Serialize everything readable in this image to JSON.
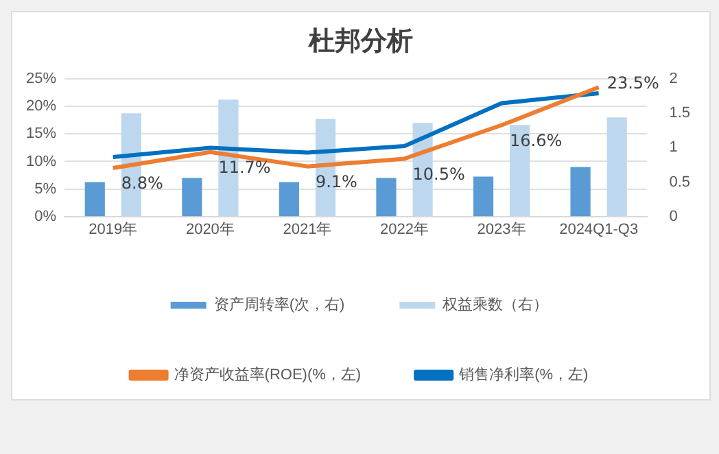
{
  "chart_data": {
    "type": "bar",
    "title": "杜邦分析",
    "categories": [
      "2019年",
      "2020年",
      "2021年",
      "2022年",
      "2023年",
      "2024Q1-Q3"
    ],
    "series": [
      {
        "name": "资产周转率(次，右)",
        "axis": "y2",
        "color": "#5b9bd5",
        "values": [
          0.5,
          0.56,
          0.5,
          0.56,
          0.58,
          0.72
        ]
      },
      {
        "name": "权益乘数（右）",
        "axis": "y2",
        "color": "#bdd7ee",
        "values": [
          1.5,
          1.7,
          1.42,
          1.36,
          1.33,
          1.44
        ]
      },
      {
        "name": "净资产收益率(ROE)(%，左)",
        "type": "line",
        "color": "#ed7d31",
        "values": [
          8.8,
          11.7,
          9.1,
          10.5,
          16.6,
          23.5
        ],
        "value_labels": [
          "8.8%",
          "11.7%",
          "9.1%",
          "10.5%",
          "16.6%",
          "23.5%"
        ]
      },
      {
        "name": "销售净利率(%，左)",
        "type": "line",
        "color": "#0070c0",
        "values": [
          10.8,
          12.5,
          11.6,
          12.8,
          20.6,
          22.4
        ]
      }
    ],
    "ylim": [
      0,
      25
    ],
    "yticks": [
      {
        "value": 0,
        "label": "0%"
      },
      {
        "value": 5,
        "label": "5%"
      },
      {
        "value": 10,
        "label": "10%"
      },
      {
        "value": 15,
        "label": "15%"
      },
      {
        "value": 20,
        "label": "20%"
      },
      {
        "value": 25,
        "label": "25%"
      }
    ],
    "y2lim": [
      0,
      2
    ],
    "y2ticks": [
      0,
      0.5,
      1,
      1.5,
      2
    ],
    "grid": "y",
    "legend": "bottom",
    "marker": "none"
  }
}
